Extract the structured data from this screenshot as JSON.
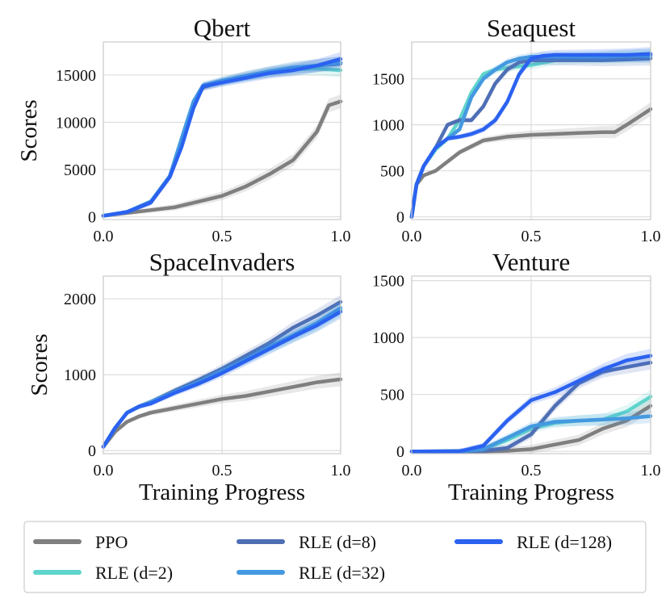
{
  "chart_data": [
    {
      "type": "line",
      "title": "Qbert",
      "xlabel": "",
      "ylabel": "Scores",
      "xlim": [
        0,
        1
      ],
      "ylim": [
        -300,
        18500
      ],
      "xticks": [
        0,
        0.5,
        1
      ],
      "xtick_labels": [
        "0.0",
        "0.5",
        "1.0"
      ],
      "yticks": [
        0,
        5000,
        10000,
        15000
      ],
      "ytick_labels": [
        "0",
        "5000",
        "10000",
        "15000"
      ],
      "grid": true,
      "series": [
        {
          "name": "PPO",
          "x": [
            0,
            0.1,
            0.2,
            0.3,
            0.4,
            0.5,
            0.6,
            0.7,
            0.8,
            0.9,
            0.95,
            1.0
          ],
          "y": [
            100,
            400,
            700,
            1000,
            1600,
            2200,
            3200,
            4500,
            6000,
            9000,
            11800,
            12200
          ]
        },
        {
          "name": "RLE (d=2)",
          "x": [
            0,
            0.1,
            0.2,
            0.28,
            0.33,
            0.38,
            0.42,
            0.5,
            0.6,
            0.7,
            0.8,
            0.9,
            1.0
          ],
          "y": [
            100,
            500,
            1600,
            4300,
            8000,
            12000,
            13800,
            14300,
            14800,
            15300,
            15600,
            15700,
            15500
          ]
        },
        {
          "name": "RLE (d=8)",
          "x": [
            0,
            0.1,
            0.2,
            0.28,
            0.33,
            0.38,
            0.42,
            0.5,
            0.6,
            0.7,
            0.8,
            0.9,
            1.0
          ],
          "y": [
            100,
            500,
            1500,
            4200,
            7500,
            11800,
            13700,
            14300,
            14900,
            15300,
            15700,
            16000,
            16200
          ]
        },
        {
          "name": "RLE (d=32)",
          "x": [
            0,
            0.1,
            0.2,
            0.28,
            0.33,
            0.38,
            0.42,
            0.5,
            0.6,
            0.7,
            0.8,
            0.9,
            1.0
          ],
          "y": [
            100,
            500,
            1600,
            4300,
            8300,
            12200,
            13900,
            14400,
            14900,
            15400,
            15800,
            16000,
            16300
          ]
        },
        {
          "name": "RLE (d=128)",
          "x": [
            0,
            0.1,
            0.2,
            0.28,
            0.33,
            0.38,
            0.42,
            0.5,
            0.6,
            0.7,
            0.8,
            0.9,
            1.0
          ],
          "y": [
            100,
            500,
            1500,
            4200,
            7400,
            11500,
            13800,
            14200,
            14700,
            15200,
            15500,
            16000,
            16700
          ]
        }
      ]
    },
    {
      "type": "line",
      "title": "Seaquest",
      "xlabel": "",
      "ylabel": "",
      "xlim": [
        0,
        1
      ],
      "ylim": [
        -30,
        1900
      ],
      "xticks": [
        0,
        0.5,
        1
      ],
      "xtick_labels": [
        "0.0",
        "0.5",
        "1.0"
      ],
      "yticks": [
        0,
        500,
        1000,
        1500
      ],
      "ytick_labels": [
        "0",
        "500",
        "1000",
        "1500"
      ],
      "grid": true,
      "series": [
        {
          "name": "PPO",
          "x": [
            0,
            0.02,
            0.05,
            0.1,
            0.2,
            0.3,
            0.4,
            0.5,
            0.6,
            0.7,
            0.8,
            0.85,
            0.9,
            1.0
          ],
          "y": [
            0,
            350,
            450,
            500,
            700,
            830,
            870,
            890,
            900,
            910,
            920,
            920,
            1000,
            1170
          ]
        },
        {
          "name": "RLE (d=2)",
          "x": [
            0,
            0.02,
            0.05,
            0.1,
            0.15,
            0.2,
            0.25,
            0.3,
            0.35,
            0.4,
            0.5,
            0.6,
            0.7,
            0.8,
            0.9,
            1.0
          ],
          "y": [
            0,
            350,
            550,
            730,
            850,
            1050,
            1350,
            1550,
            1600,
            1620,
            1650,
            1700,
            1720,
            1730,
            1740,
            1750
          ]
        },
        {
          "name": "RLE (d=8)",
          "x": [
            0,
            0.02,
            0.05,
            0.1,
            0.15,
            0.2,
            0.25,
            0.3,
            0.35,
            0.4,
            0.45,
            0.5,
            0.55,
            0.6,
            0.7,
            0.8,
            0.9,
            1.0
          ],
          "y": [
            0,
            350,
            550,
            750,
            1000,
            1050,
            1050,
            1200,
            1450,
            1600,
            1680,
            1700,
            1700,
            1700,
            1700,
            1700,
            1710,
            1720
          ]
        },
        {
          "name": "RLE (d=32)",
          "x": [
            0,
            0.02,
            0.05,
            0.1,
            0.15,
            0.2,
            0.25,
            0.3,
            0.35,
            0.4,
            0.45,
            0.5,
            0.55,
            0.6,
            0.7,
            0.8,
            0.9,
            1.0
          ],
          "y": [
            0,
            350,
            550,
            750,
            850,
            950,
            1300,
            1500,
            1600,
            1680,
            1720,
            1740,
            1740,
            1740,
            1740,
            1740,
            1750,
            1750
          ]
        },
        {
          "name": "RLE (d=128)",
          "x": [
            0,
            0.02,
            0.05,
            0.1,
            0.15,
            0.2,
            0.25,
            0.3,
            0.35,
            0.4,
            0.45,
            0.5,
            0.55,
            0.6,
            0.7,
            0.8,
            0.9,
            1.0
          ],
          "y": [
            0,
            350,
            550,
            750,
            850,
            870,
            900,
            950,
            1050,
            1250,
            1550,
            1720,
            1750,
            1760,
            1760,
            1760,
            1760,
            1770
          ]
        }
      ]
    },
    {
      "type": "line",
      "title": "SpaceInvaders",
      "xlabel": "Training Progress",
      "ylabel": "Scores",
      "xlim": [
        0,
        1
      ],
      "ylim": [
        -40,
        2300
      ],
      "xticks": [
        0,
        0.5,
        1
      ],
      "xtick_labels": [
        "0.0",
        "0.5",
        "1.0"
      ],
      "yticks": [
        0,
        1000,
        2000
      ],
      "ytick_labels": [
        "0",
        "1000",
        "2000"
      ],
      "grid": true,
      "series": [
        {
          "name": "PPO",
          "x": [
            0,
            0.05,
            0.1,
            0.15,
            0.2,
            0.3,
            0.4,
            0.5,
            0.6,
            0.7,
            0.8,
            0.9,
            1.0
          ],
          "y": [
            50,
            250,
            380,
            450,
            500,
            560,
            620,
            680,
            720,
            780,
            840,
            900,
            940
          ]
        },
        {
          "name": "RLE (d=2)",
          "x": [
            0,
            0.05,
            0.1,
            0.15,
            0.2,
            0.3,
            0.4,
            0.5,
            0.6,
            0.7,
            0.8,
            0.9,
            1.0
          ],
          "y": [
            50,
            300,
            500,
            580,
            640,
            780,
            900,
            1050,
            1200,
            1350,
            1500,
            1650,
            1850
          ]
        },
        {
          "name": "RLE (d=8)",
          "x": [
            0,
            0.05,
            0.1,
            0.15,
            0.2,
            0.3,
            0.4,
            0.5,
            0.6,
            0.7,
            0.8,
            0.9,
            1.0
          ],
          "y": [
            50,
            300,
            500,
            580,
            640,
            790,
            930,
            1080,
            1250,
            1420,
            1620,
            1780,
            1960
          ]
        },
        {
          "name": "RLE (d=32)",
          "x": [
            0,
            0.05,
            0.1,
            0.15,
            0.2,
            0.3,
            0.4,
            0.5,
            0.6,
            0.7,
            0.8,
            0.9,
            1.0
          ],
          "y": [
            50,
            300,
            500,
            580,
            640,
            770,
            900,
            1050,
            1200,
            1370,
            1520,
            1680,
            1880
          ]
        },
        {
          "name": "RLE (d=128)",
          "x": [
            0,
            0.05,
            0.1,
            0.15,
            0.2,
            0.3,
            0.4,
            0.5,
            0.6,
            0.7,
            0.8,
            0.9,
            1.0
          ],
          "y": [
            50,
            300,
            500,
            580,
            620,
            760,
            880,
            1020,
            1180,
            1340,
            1500,
            1650,
            1830
          ]
        }
      ]
    },
    {
      "type": "line",
      "title": "Venture",
      "xlabel": "Training Progress",
      "ylabel": "",
      "xlim": [
        0,
        1
      ],
      "ylim": [
        -20,
        1540
      ],
      "xticks": [
        0,
        0.5,
        1
      ],
      "xtick_labels": [
        "0.0",
        "0.5",
        "1.0"
      ],
      "yticks": [
        0,
        500,
        1000,
        1500
      ],
      "ytick_labels": [
        "0",
        "500",
        "1000",
        "1500"
      ],
      "grid": true,
      "series": [
        {
          "name": "PPO",
          "x": [
            0,
            0.1,
            0.2,
            0.3,
            0.4,
            0.5,
            0.6,
            0.7,
            0.8,
            0.9,
            1.0
          ],
          "y": [
            0,
            0,
            0,
            0,
            5,
            20,
            60,
            100,
            200,
            270,
            400
          ]
        },
        {
          "name": "RLE (d=2)",
          "x": [
            0,
            0.1,
            0.2,
            0.3,
            0.4,
            0.5,
            0.6,
            0.7,
            0.8,
            0.9,
            1.0
          ],
          "y": [
            0,
            0,
            0,
            20,
            100,
            200,
            250,
            270,
            280,
            350,
            480
          ]
        },
        {
          "name": "RLE (d=8)",
          "x": [
            0,
            0.1,
            0.2,
            0.3,
            0.4,
            0.5,
            0.6,
            0.7,
            0.8,
            0.9,
            1.0
          ],
          "y": [
            0,
            0,
            0,
            5,
            30,
            150,
            400,
            600,
            700,
            740,
            780
          ]
        },
        {
          "name": "RLE (d=32)",
          "x": [
            0,
            0.1,
            0.2,
            0.3,
            0.4,
            0.5,
            0.6,
            0.7,
            0.8,
            0.9,
            1.0
          ],
          "y": [
            0,
            0,
            0,
            20,
            120,
            220,
            260,
            270,
            280,
            290,
            310
          ]
        },
        {
          "name": "RLE (d=128)",
          "x": [
            0,
            0.1,
            0.2,
            0.3,
            0.4,
            0.5,
            0.6,
            0.7,
            0.8,
            0.9,
            1.0
          ],
          "y": [
            0,
            0,
            0,
            50,
            270,
            450,
            520,
            620,
            720,
            800,
            840
          ]
        }
      ]
    }
  ],
  "legend": {
    "placement": "bottom",
    "entries": [
      {
        "label": "PPO",
        "color": "#7f7f7f"
      },
      {
        "label": "RLE (d=2)",
        "color": "#5fd4cc"
      },
      {
        "label": "RLE (d=8)",
        "color": "#4f6fb5"
      },
      {
        "label": "RLE (d=32)",
        "color": "#4499e0"
      },
      {
        "label": "RLE (d=128)",
        "color": "#2b62f0"
      }
    ]
  },
  "colors": {
    "PPO": "#7f7f7f",
    "RLE (d=2)": "#5fd4cc",
    "RLE (d=8)": "#4f6fb5",
    "RLE (d=32)": "#4499e0",
    "RLE (d=128)": "#2b62f0"
  }
}
